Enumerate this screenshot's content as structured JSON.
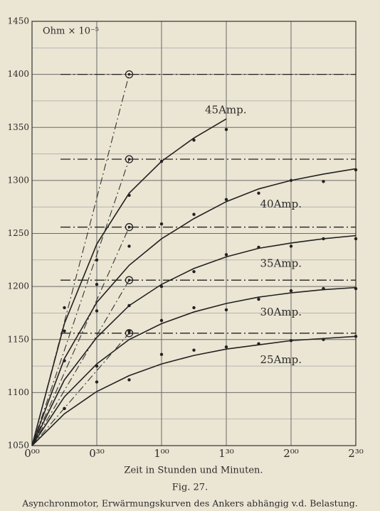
{
  "chart_data": {
    "type": "line",
    "y_label": "Ohm × 10⁻⁵",
    "x_label": "Zeit in Stunden und Minuten.",
    "figure": "Fig. 27.",
    "caption": "Asynchronmotor, Erwärmungskurven des Ankers abhängig v.d. Belastung.",
    "xlim": [
      0,
      150
    ],
    "ylim": [
      1050,
      1450
    ],
    "xticks": [
      {
        "value": 0,
        "label": "0⁰⁰"
      },
      {
        "value": 30,
        "label": "0³⁰"
      },
      {
        "value": 60,
        "label": "1⁰⁰"
      },
      {
        "value": 90,
        "label": "1³⁰"
      },
      {
        "value": 120,
        "label": "2⁰⁰"
      },
      {
        "value": 150,
        "label": "2³⁰"
      }
    ],
    "yticks": [
      1050,
      1100,
      1150,
      1200,
      1250,
      1300,
      1350,
      1400,
      1450
    ],
    "minor_yticks": [
      1075,
      1125,
      1175,
      1225,
      1275,
      1325,
      1375,
      1425
    ],
    "grid": true,
    "x": [
      0,
      15,
      30,
      45,
      60,
      75,
      90,
      105,
      120,
      135,
      150
    ],
    "tangent_x": 45,
    "asymptotes": [
      1400,
      1320,
      1256,
      1206,
      1156
    ],
    "series": [
      {
        "name": "45Amp.",
        "color": "#222222",
        "values": [
          1050,
          1165,
          1240,
          1288,
          1318,
          1340,
          1358,
          null,
          null,
          null,
          null
        ],
        "measured": {
          "x": [
            15,
            30,
            45,
            60,
            75,
            90
          ],
          "values": [
            1180,
            1225,
            1286,
            1318,
            1338,
            1348
          ]
        }
      },
      {
        "name": "40Amp.",
        "color": "#222222",
        "values": [
          1050,
          1132,
          1185,
          1220,
          1245,
          1264,
          1280,
          1292,
          1300,
          1306,
          1311
        ],
        "measured": {
          "x": [
            15,
            30,
            45,
            60,
            75,
            90,
            105,
            120,
            135,
            150
          ],
          "values": [
            1158,
            1202,
            1238,
            1259,
            1268,
            1282,
            1288,
            1300,
            1299,
            1310
          ]
        }
      },
      {
        "name": "35Amp.",
        "color": "#222222",
        "values": [
          1050,
          1112,
          1152,
          1182,
          1202,
          1217,
          1228,
          1236,
          1241,
          1245,
          1248
        ],
        "measured": {
          "x": [
            15,
            30,
            45,
            60,
            75,
            90,
            105,
            120,
            135,
            150
          ],
          "values": [
            1130,
            1177,
            1182,
            1200,
            1214,
            1230,
            1237,
            1238,
            1245,
            1245
          ]
        }
      },
      {
        "name": "30Amp.",
        "color": "#222222",
        "values": [
          1050,
          1096,
          1127,
          1150,
          1165,
          1176,
          1184,
          1190,
          1194,
          1197,
          1199
        ],
        "measured": {
          "x": [
            15,
            30,
            45,
            60,
            75,
            90,
            105,
            120,
            135,
            150
          ],
          "values": [
            1085,
            1125,
            1158,
            1168,
            1180,
            1178,
            1188,
            1196,
            1198,
            1198
          ]
        }
      },
      {
        "name": "25Amp.",
        "color": "#222222",
        "values": [
          1050,
          1080,
          1101,
          1116,
          1127,
          1135,
          1141,
          1145,
          1149,
          1151,
          1153
        ],
        "measured": {
          "x": [
            15,
            30,
            45,
            60,
            75,
            90,
            105,
            120,
            135,
            150
          ],
          "values": [
            1085,
            1110,
            1112,
            1136,
            1140,
            1143,
            1146,
            1149,
            1150,
            1153
          ]
        }
      }
    ]
  }
}
